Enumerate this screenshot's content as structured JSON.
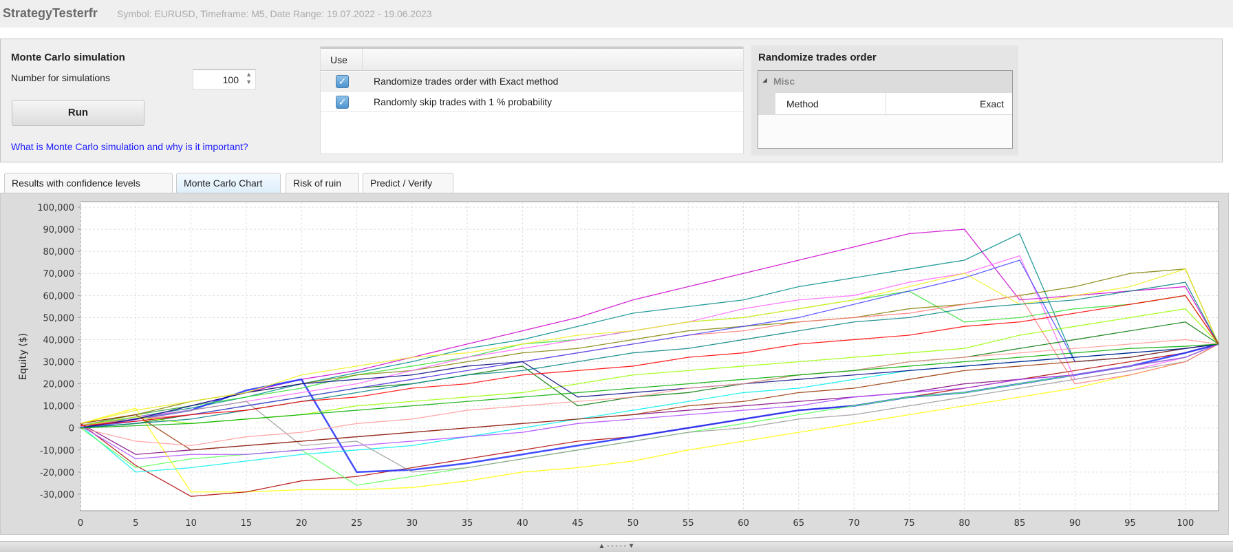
{
  "header": {
    "title": "StrategyTesterfr",
    "subtitle": "Symbol: EURUSD, Timeframe: M5, Date Range: 19.07.2022 - 19.06.2023"
  },
  "simulation": {
    "heading": "Monte Carlo simulation",
    "count_label": "Number for simulations",
    "count_value": "100",
    "run_label": "Run",
    "help_link": "What is Monte Carlo simulation and why is it important?"
  },
  "options_table": {
    "header_use": "Use",
    "rows": [
      {
        "checked": true,
        "label": "Randomize trades order with Exact method"
      },
      {
        "checked": true,
        "label": "Randomly skip trades with 1 % probability"
      }
    ]
  },
  "properties": {
    "title": "Randomize trades order",
    "category": "Misc",
    "rows": [
      {
        "name": "Method",
        "value": "Exact"
      }
    ]
  },
  "tabs": [
    {
      "label": "Results with confidence levels",
      "selected": false
    },
    {
      "label": "Monte Carlo Chart",
      "selected": true
    },
    {
      "label": "Risk of ruin",
      "selected": false
    },
    {
      "label": "Predict / Verify",
      "selected": false
    }
  ],
  "splitter": {
    "label": "▲ - - - - - ▼"
  },
  "chart_data": {
    "type": "line",
    "title": "",
    "xlabel": "",
    "ylabel": "Equity ($)",
    "grid": true,
    "legend": "none",
    "xlim": [
      0,
      103
    ],
    "ylim": [
      -37500,
      102500
    ],
    "xticks": [
      0,
      5,
      10,
      15,
      20,
      25,
      30,
      35,
      40,
      45,
      50,
      55,
      60,
      65,
      70,
      75,
      80,
      85,
      90,
      95,
      100
    ],
    "yticks": [
      -30000,
      -20000,
      -10000,
      0,
      10000,
      20000,
      30000,
      40000,
      50000,
      60000,
      70000,
      80000,
      90000,
      100000
    ],
    "ytick_labels": [
      "-30,000",
      "-20,000",
      "-10,000",
      "0",
      "10,000",
      "20,000",
      "30,000",
      "40,000",
      "50,000",
      "60,000",
      "70,000",
      "80,000",
      "90,000",
      "100,000"
    ],
    "x": [
      0,
      5,
      10,
      15,
      20,
      25,
      30,
      35,
      40,
      45,
      50,
      55,
      60,
      65,
      70,
      75,
      80,
      85,
      90,
      95,
      100,
      103
    ],
    "series": [
      {
        "color": "#cc00cc",
        "values": [
          1000,
          6000,
          10000,
          16000,
          22000,
          26000,
          32000,
          38000,
          44000,
          50000,
          58000,
          64000,
          70000,
          76000,
          82000,
          88000,
          90000,
          58000,
          60000,
          62000,
          64000,
          38000
        ]
      },
      {
        "color": "#008b8b",
        "values": [
          0,
          5000,
          9000,
          14000,
          20000,
          25000,
          30000,
          36000,
          40000,
          46000,
          52000,
          55000,
          58000,
          64000,
          68000,
          72000,
          76000,
          88000,
          30000,
          32000,
          36000,
          38000
        ]
      },
      {
        "color": "#ffff00",
        "values": [
          2000,
          9000,
          -29000,
          -29000,
          -28000,
          -28000,
          -27000,
          -24000,
          -20000,
          -18000,
          -15000,
          -10000,
          -6000,
          -2000,
          2000,
          6000,
          10000,
          14000,
          18000,
          24000,
          30000,
          38000
        ]
      },
      {
        "color": "#b00000",
        "values": [
          2000,
          -17000,
          -31000,
          -29000,
          -24000,
          -22000,
          -18000,
          -14000,
          -10000,
          -6000,
          -4000,
          0,
          4000,
          8000,
          10000,
          14000,
          18000,
          22000,
          26000,
          30000,
          34000,
          38000
        ]
      },
      {
        "color": "#1f2fff",
        "values": [
          0,
          4000,
          8000,
          17000,
          22000,
          -20000,
          -19000,
          -16000,
          -12000,
          -8000,
          -4000,
          0,
          4000,
          8000,
          10000,
          14000,
          16000,
          20000,
          24000,
          28000,
          34000,
          38000
        ]
      },
      {
        "color": "#33dd33",
        "values": [
          1000,
          6000,
          10000,
          14000,
          18000,
          24000,
          28000,
          32000,
          38000,
          40000,
          44000,
          48000,
          50000,
          54000,
          58000,
          62000,
          48000,
          50000,
          54000,
          56000,
          60000,
          38000
        ]
      },
      {
        "color": "#808000",
        "values": [
          2000,
          6000,
          12000,
          16000,
          20000,
          24000,
          26000,
          30000,
          34000,
          36000,
          40000,
          44000,
          46000,
          48000,
          50000,
          54000,
          56000,
          60000,
          64000,
          70000,
          72000,
          38000
        ]
      },
      {
        "color": "#ff66ff",
        "values": [
          1000,
          5000,
          8000,
          12000,
          16000,
          20000,
          26000,
          32000,
          36000,
          40000,
          44000,
          48000,
          54000,
          58000,
          60000,
          66000,
          70000,
          78000,
          22000,
          26000,
          32000,
          38000
        ]
      },
      {
        "color": "#800080",
        "values": [
          2000,
          -12000,
          -10000,
          -8000,
          -6000,
          -4000,
          -2000,
          0,
          2000,
          4000,
          6000,
          8000,
          10000,
          12000,
          14000,
          16000,
          20000,
          22000,
          24000,
          28000,
          32000,
          38000
        ]
      },
      {
        "color": "#00eeee",
        "values": [
          1000,
          -20000,
          -18000,
          -15000,
          -12000,
          -10000,
          -8000,
          -4000,
          0,
          4000,
          8000,
          12000,
          16000,
          18000,
          22000,
          26000,
          28000,
          30000,
          32000,
          34000,
          36000,
          38000
        ]
      },
      {
        "color": "#55ff55",
        "values": [
          0,
          -18000,
          -14000,
          -12000,
          -10000,
          -26000,
          -22000,
          -18000,
          -14000,
          -10000,
          -6000,
          -2000,
          2000,
          6000,
          10000,
          14000,
          16000,
          20000,
          24000,
          28000,
          32000,
          38000
        ]
      },
      {
        "color": "#999999",
        "values": [
          0,
          4000,
          8000,
          12000,
          -8000,
          -6000,
          -20000,
          -18000,
          -14000,
          -10000,
          -6000,
          -2000,
          0,
          4000,
          6000,
          10000,
          14000,
          18000,
          22000,
          26000,
          30000,
          38000
        ]
      },
      {
        "color": "#ff7777",
        "values": [
          1000,
          4000,
          6000,
          10000,
          14000,
          18000,
          22000,
          26000,
          30000,
          34000,
          38000,
          42000,
          44000,
          48000,
          50000,
          52000,
          56000,
          60000,
          20000,
          24000,
          30000,
          38000
        ]
      },
      {
        "color": "#007700",
        "values": [
          0,
          2000,
          6000,
          10000,
          14000,
          18000,
          20000,
          24000,
          28000,
          10000,
          14000,
          16000,
          20000,
          24000,
          26000,
          30000,
          32000,
          36000,
          40000,
          44000,
          48000,
          38000
        ]
      },
      {
        "color": "#4444ff",
        "values": [
          0,
          3000,
          6000,
          10000,
          14000,
          18000,
          22000,
          26000,
          30000,
          34000,
          38000,
          42000,
          46000,
          50000,
          56000,
          62000,
          68000,
          76000,
          30000,
          32000,
          36000,
          38000
        ]
      },
      {
        "color": "#993300",
        "values": [
          2000,
          6000,
          -10000,
          -8000,
          -6000,
          -4000,
          -2000,
          0,
          2000,
          4000,
          6000,
          10000,
          12000,
          16000,
          18000,
          22000,
          26000,
          28000,
          30000,
          32000,
          36000,
          38000
        ]
      },
      {
        "color": "#99ff00",
        "values": [
          1000,
          5000,
          2000,
          4000,
          6000,
          10000,
          12000,
          14000,
          16000,
          20000,
          24000,
          26000,
          28000,
          30000,
          32000,
          34000,
          36000,
          42000,
          46000,
          50000,
          54000,
          38000
        ]
      },
      {
        "color": "#000080",
        "values": [
          0,
          4000,
          10000,
          16000,
          20000,
          22000,
          24000,
          28000,
          30000,
          14000,
          16000,
          18000,
          20000,
          22000,
          24000,
          26000,
          28000,
          30000,
          32000,
          34000,
          36000,
          38000
        ]
      },
      {
        "color": "#eeee22",
        "values": [
          2000,
          8000,
          12000,
          16000,
          24000,
          28000,
          32000,
          34000,
          38000,
          42000,
          44000,
          48000,
          50000,
          54000,
          58000,
          64000,
          70000,
          56000,
          60000,
          64000,
          72000,
          38000
        ]
      },
      {
        "color": "#ff9999",
        "values": [
          0,
          -6000,
          -8000,
          -4000,
          -2000,
          2000,
          4000,
          8000,
          10000,
          12000,
          14000,
          18000,
          20000,
          24000,
          26000,
          30000,
          32000,
          34000,
          36000,
          38000,
          40000,
          38000
        ]
      },
      {
        "color": "#aa44ff",
        "values": [
          1000,
          -14000,
          -12000,
          -12000,
          -10000,
          -8000,
          -6000,
          -4000,
          -2000,
          2000,
          4000,
          6000,
          8000,
          10000,
          14000,
          16000,
          18000,
          22000,
          24000,
          28000,
          32000,
          38000
        ]
      },
      {
        "color": "#008080",
        "values": [
          0,
          2000,
          4000,
          8000,
          12000,
          16000,
          20000,
          24000,
          26000,
          30000,
          34000,
          36000,
          40000,
          44000,
          48000,
          50000,
          54000,
          56000,
          58000,
          62000,
          66000,
          38000
        ]
      },
      {
        "color": "#ff0000",
        "values": [
          1000,
          3000,
          6000,
          8000,
          12000,
          14000,
          18000,
          20000,
          24000,
          26000,
          28000,
          32000,
          34000,
          38000,
          40000,
          42000,
          46000,
          48000,
          52000,
          56000,
          60000,
          38000
        ]
      },
      {
        "color": "#00aa00",
        "values": [
          0,
          1000,
          2000,
          4000,
          6000,
          8000,
          10000,
          12000,
          14000,
          16000,
          18000,
          20000,
          22000,
          24000,
          26000,
          28000,
          30000,
          32000,
          34000,
          36000,
          37000,
          38000
        ]
      }
    ]
  }
}
